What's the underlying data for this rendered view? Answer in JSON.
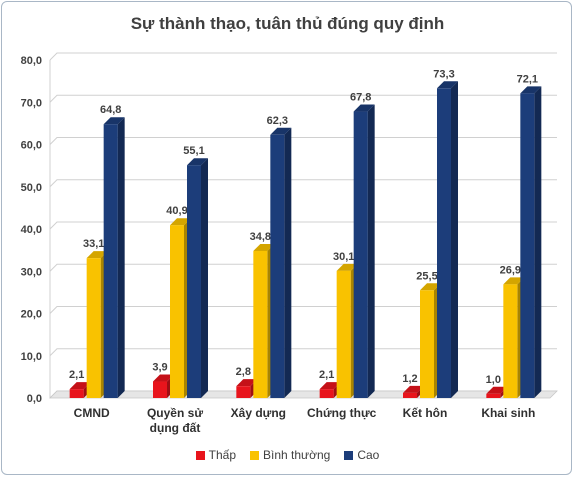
{
  "chart_data": {
    "type": "bar",
    "title": "Sự thành thạo, tuân thủ đúng quy định",
    "categories": [
      "CMND",
      "Quyền sử dụng đất",
      "Xây dựng",
      "Chứng thực",
      "Kết hôn",
      "Khai sinh"
    ],
    "category_lines": [
      [
        "CMND"
      ],
      [
        "Quyền sử",
        "dụng đất"
      ],
      [
        "Xây dựng"
      ],
      [
        "Chứng thực"
      ],
      [
        "Kết hôn"
      ],
      [
        "Khai sinh"
      ]
    ],
    "series": [
      {
        "name": "Thấp",
        "values": [
          2.1,
          3.9,
          2.8,
          2.1,
          1.2,
          1.0
        ],
        "labels": [
          "2,1",
          "3,9",
          "2,8",
          "2,1",
          "1,2",
          "1,0"
        ],
        "color": "#e8141c"
      },
      {
        "name": "Bình thường",
        "values": [
          33.1,
          40.9,
          34.8,
          30.1,
          25.5,
          26.9
        ],
        "labels": [
          "33,1",
          "40,9",
          "34,8",
          "30,1",
          "25,5",
          "26,9"
        ],
        "color": "#f9c200"
      },
      {
        "name": "Cao",
        "values": [
          64.8,
          55.1,
          62.3,
          67.8,
          73.3,
          72.1
        ],
        "labels": [
          "64,8",
          "55,1",
          "62,3",
          "67,8",
          "73,3",
          "72,1"
        ],
        "color": "#1c3d7a"
      }
    ],
    "ylim": [
      0,
      80
    ],
    "yticks": [
      "0,0",
      "10,0",
      "20,0",
      "30,0",
      "40,0",
      "50,0",
      "60,0",
      "70,0",
      "80,0"
    ],
    "grid": true,
    "legend_position": "bottom"
  }
}
